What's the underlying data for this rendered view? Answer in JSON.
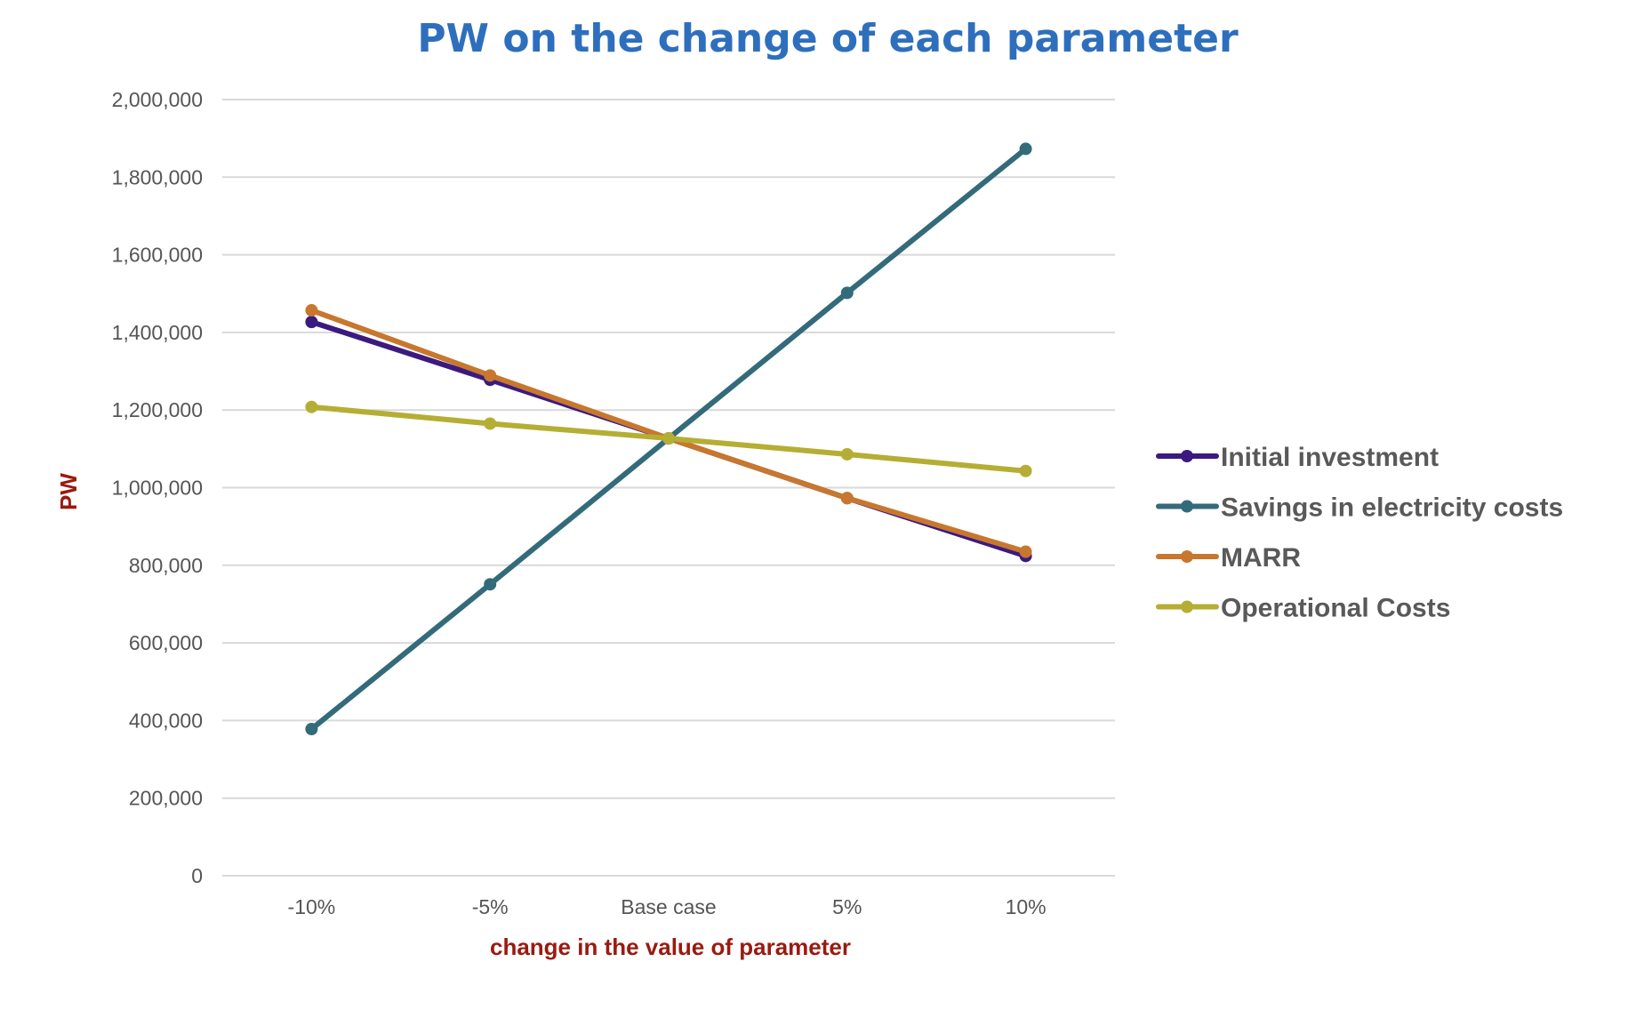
{
  "chart_data": {
    "type": "line",
    "title": "PW on the change of each parameter",
    "xlabel": "change in the value of parameter",
    "ylabel": "PW",
    "categories": [
      "-10%",
      "-5%",
      "Base case",
      "5%",
      "10%"
    ],
    "ylim": [
      0,
      2000000
    ],
    "yticks": [
      0,
      200000,
      400000,
      600000,
      800000,
      1000000,
      1200000,
      1400000,
      1600000,
      1800000,
      2000000
    ],
    "ytick_labels": [
      "0",
      "200,000",
      "400,000",
      "600,000",
      "800,000",
      "1,000,000",
      "1,200,000",
      "1,400,000",
      "1,600,000",
      "1,800,000",
      "2,000,000"
    ],
    "grid": true,
    "legend_position": "right",
    "series": [
      {
        "name": "Initial investment",
        "color": "#3b1a80",
        "values": [
          1427000,
          1278000,
          1127000,
          973000,
          824000
        ]
      },
      {
        "name": "Savings in electricity costs",
        "color": "#336b7a",
        "values": [
          378000,
          751000,
          1127000,
          1502000,
          1873000
        ]
      },
      {
        "name": "MARR",
        "color": "#c7772e",
        "values": [
          1457000,
          1289000,
          1127000,
          973000,
          835000
        ]
      },
      {
        "name": "Operational Costs",
        "color": "#b5ae34",
        "values": [
          1208000,
          1165000,
          1127000,
          1086000,
          1043000
        ]
      }
    ]
  }
}
